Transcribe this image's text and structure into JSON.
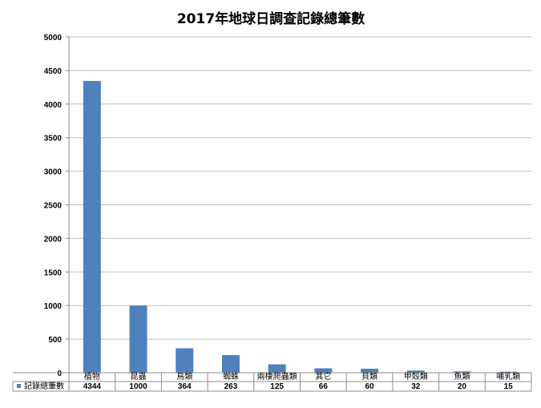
{
  "chart_data": {
    "type": "bar",
    "title": "2017年地球日調查記錄總筆數",
    "categories": [
      "植物",
      "昆蟲",
      "鳥類",
      "蜘蛛",
      "兩棲爬蟲類",
      "其它",
      "貝類",
      "甲殼類",
      "魚類",
      "哺乳類"
    ],
    "series": [
      {
        "name": "記錄總筆數",
        "values": [
          4344,
          1000,
          364,
          263,
          125,
          66,
          60,
          32,
          20,
          15
        ]
      }
    ],
    "ylim": [
      0,
      5000
    ],
    "yticks": [
      "0",
      "500",
      "1000",
      "1500",
      "2000",
      "2500",
      "3000",
      "3500",
      "4000",
      "4500",
      "5000"
    ],
    "grid": true,
    "legend": "bottom-left in data table",
    "data_table": true,
    "colors": {
      "bar": "#4f81bd",
      "grid": "#c0c0c0",
      "border": "#8c8c8c"
    }
  }
}
